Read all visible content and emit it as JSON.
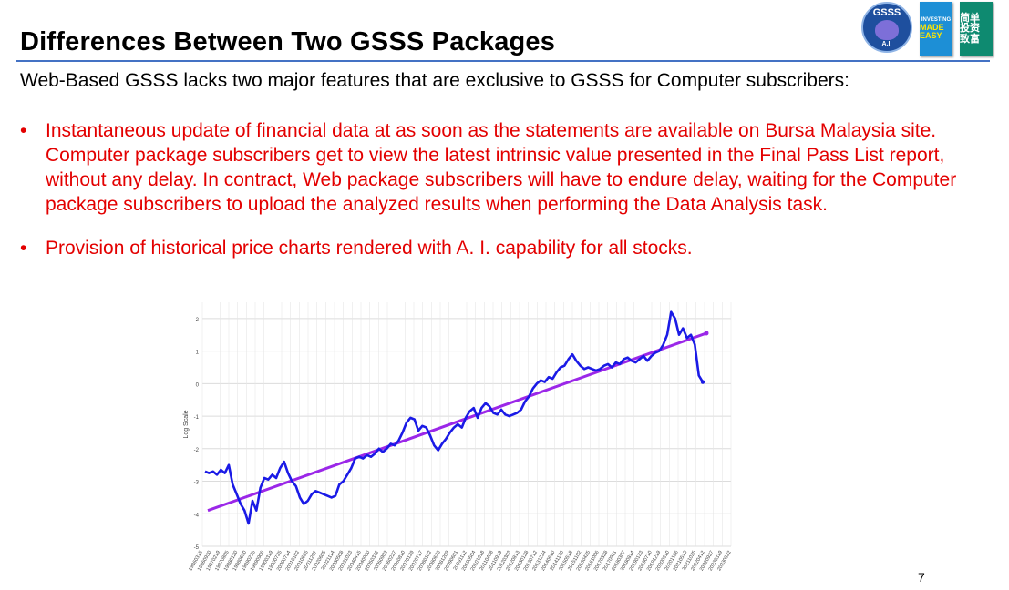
{
  "slide": {
    "title": "Differences Between Two GSSS Packages",
    "intro": "Web-Based GSSS lacks two major features that are exclusive to GSSS for Computer subscribers:",
    "bullets": [
      "Instantaneous update of financial data at as soon as the statements are available on Bursa Malaysia site.  Computer package subscribers get to view the latest intrinsic value presented in the Final Pass List report, without any delay.  In contract, Web package subscribers will have to endure delay, waiting for the Computer package subscribers to upload the analyzed results when performing the Data Analysis task.",
      "Provision of historical price charts rendered with A. I. capability for all stocks."
    ],
    "bullet_symbol": "•",
    "page_number": "7",
    "accent_color": "#4472c4",
    "bullet_color": "#e30000"
  },
  "logos": {
    "gsss_label": "GSSS",
    "gsss_sub": "A.I.",
    "book_en_small": "INVESTING",
    "book_en_main": "MADE EASY",
    "book_zh": "简单 投资 致富"
  },
  "chart_data": {
    "type": "line",
    "ylabel": "Log Scale",
    "ylim": [
      -5,
      2.5
    ],
    "yticks": [
      "2",
      "1",
      "0",
      "-1",
      "-2",
      "-3",
      "-4",
      "-5"
    ],
    "x_tick_labels": [
      "19860315",
      "19860930",
      "19870219",
      "19870805",
      "19880120",
      "19880630",
      "19890225",
      "19890906",
      "19900319",
      "19900725",
      "20000714",
      "20010102",
      "20010625",
      "20011207",
      "20020605",
      "20021114",
      "20030508",
      "20031023",
      "20040415",
      "20040930",
      "20050322",
      "20050902",
      "20060227",
      "20060810",
      "20070129",
      "20070717",
      "20080102",
      "20080623",
      "20081209",
      "20090601",
      "20091112",
      "20100504",
      "20101018",
      "20110408",
      "20110919",
      "20120303",
      "20120813",
      "20130128",
      "20130712",
      "20131224",
      "20140610",
      "20141126",
      "20150518",
      "20151102",
      "20160425",
      "20161006",
      "20170328",
      "20170911",
      "20180307",
      "20180814",
      "20190123",
      "20190710",
      "20191219",
      "20200610",
      "20201126",
      "20210513",
      "20211025",
      "20220412",
      "20220927",
      "20230319",
      "20230822"
    ],
    "series": [
      {
        "color": "#1a1ae6",
        "values": [
          -2.7,
          -2.75,
          -2.7,
          -2.8,
          -2.65,
          -2.75,
          -2.5,
          -3.1,
          -3.4,
          -3.7,
          -3.9,
          -4.3,
          -3.6,
          -3.9,
          -3.2,
          -2.9,
          -2.95,
          -2.8,
          -2.9,
          -2.6,
          -2.4,
          -2.75,
          -3.0,
          -3.15,
          -3.5,
          -3.7,
          -3.6,
          -3.4,
          -3.3,
          -3.35,
          -3.4,
          -3.45,
          -3.5,
          -3.45,
          -3.1,
          -3.0,
          -2.8,
          -2.6,
          -2.3,
          -2.25,
          -2.3,
          -2.2,
          -2.25,
          -2.15,
          -2.0,
          -2.1,
          -2.0,
          -1.85,
          -1.9,
          -1.75,
          -1.5,
          -1.2,
          -1.05,
          -1.1,
          -1.45,
          -1.3,
          -1.35,
          -1.6,
          -1.9,
          -2.05,
          -1.85,
          -1.7,
          -1.5,
          -1.35,
          -1.25,
          -1.35,
          -1.05,
          -0.85,
          -0.75,
          -1.05,
          -0.75,
          -0.6,
          -0.7,
          -0.9,
          -0.95,
          -0.8,
          -0.95,
          -1.0,
          -0.95,
          -0.9,
          -0.8,
          -0.55,
          -0.4,
          -0.15,
          0.0,
          0.1,
          0.05,
          0.2,
          0.15,
          0.35,
          0.5,
          0.55,
          0.75,
          0.9,
          0.7,
          0.55,
          0.45,
          0.5,
          0.45,
          0.4,
          0.45,
          0.55,
          0.6,
          0.5,
          0.65,
          0.6,
          0.75,
          0.8,
          0.7,
          0.65,
          0.75,
          0.85,
          0.7,
          0.85,
          0.95,
          1.0,
          1.2,
          1.5,
          2.2,
          2.0,
          1.5,
          1.7,
          1.4,
          1.5,
          1.2,
          0.25,
          0.05
        ]
      },
      {
        "color": "#9b27e8",
        "line_start": -3.9,
        "line_end": 1.55
      }
    ],
    "grid": true
  }
}
